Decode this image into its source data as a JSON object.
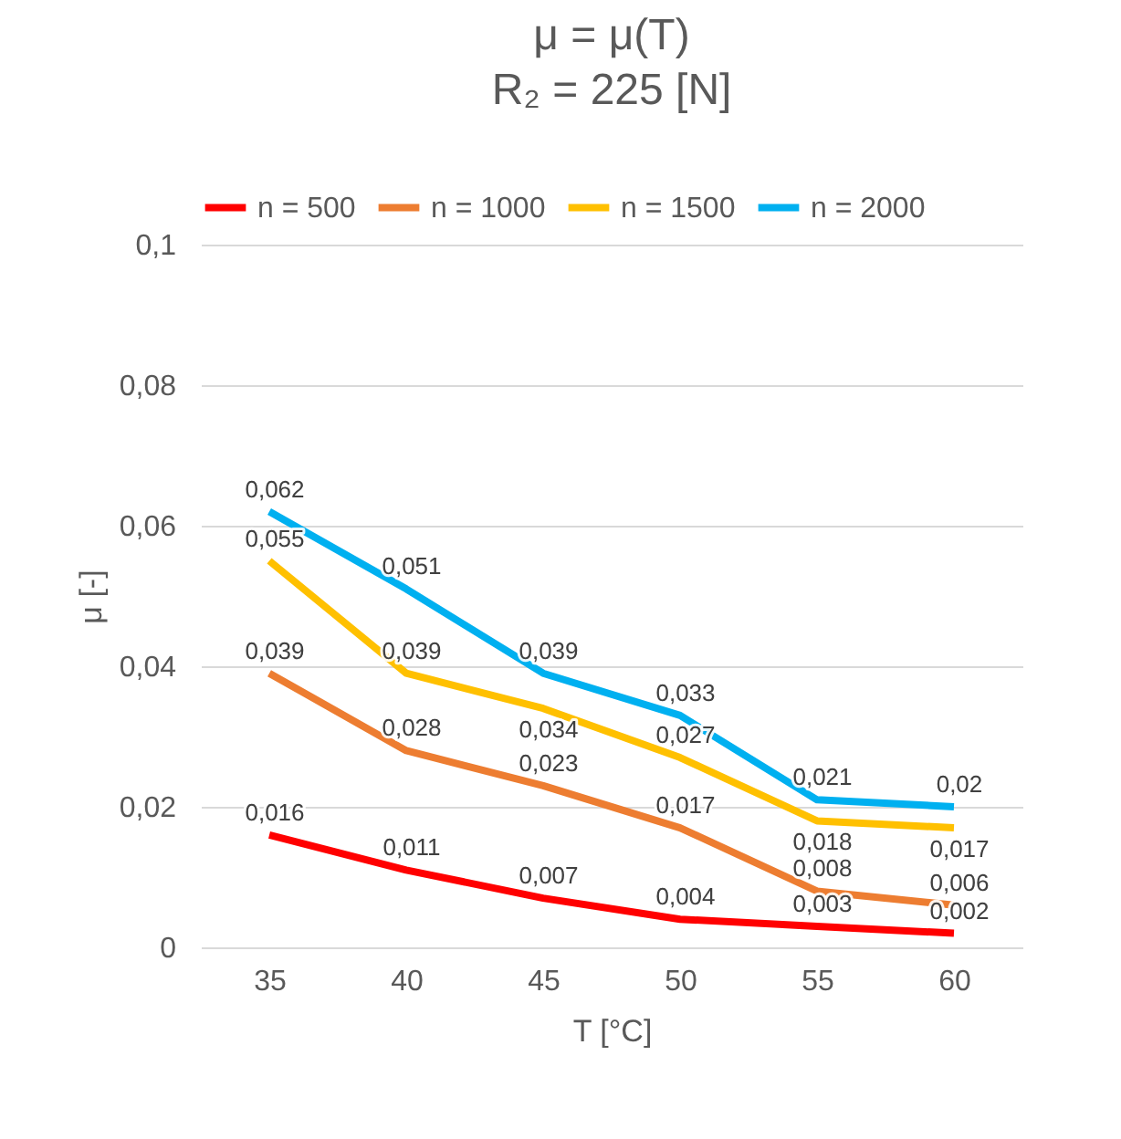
{
  "chart_data": {
    "type": "line",
    "title": "μ = μ(T)",
    "subtitle": "R₂ = 225 [N]",
    "xlabel": "T [°C]",
    "ylabel": "μ [-]",
    "categories": [
      "35",
      "40",
      "45",
      "50",
      "55",
      "60"
    ],
    "series": [
      {
        "name": "n = 500",
        "color": "#ff0000",
        "values": [
          0.016,
          0.011,
          0.007,
          0.004,
          0.003,
          0.002
        ],
        "value_labels": [
          "0,016",
          "0,011",
          "0,007",
          "0,004",
          "0,003",
          "0,002"
        ]
      },
      {
        "name": "n = 1000",
        "color": "#ed7d31",
        "values": [
          0.039,
          0.028,
          0.023,
          0.017,
          0.008,
          0.006
        ],
        "value_labels": [
          "0,039",
          "0,028",
          "0,023",
          "0,017",
          "0,008",
          "0,006"
        ]
      },
      {
        "name": "n = 1500",
        "color": "#ffc000",
        "values": [
          0.055,
          0.039,
          0.034,
          0.027,
          0.018,
          0.017
        ],
        "value_labels": [
          "0,055",
          "0,039",
          "0,034",
          "0,027",
          "0,018",
          "0,017"
        ]
      },
      {
        "name": "n = 2000",
        "color": "#00b0f0",
        "values": [
          0.062,
          0.051,
          0.039,
          0.033,
          0.021,
          0.02
        ],
        "value_labels": [
          "0,062",
          "0,051",
          "0,039",
          "0,033",
          "0,021",
          "0,02"
        ]
      }
    ],
    "ylim": [
      0,
      0.1
    ],
    "yticks": [
      0,
      {
        "value": 0.02,
        "label": "0,02"
      },
      {
        "value": 0.04,
        "label": "0,04"
      },
      {
        "value": 0.06,
        "label": "0,06"
      },
      {
        "value": 0.08,
        "label": "0,08"
      },
      {
        "value": 0.1,
        "label": "0,1"
      }
    ],
    "grid": "y",
    "legend": "top"
  }
}
